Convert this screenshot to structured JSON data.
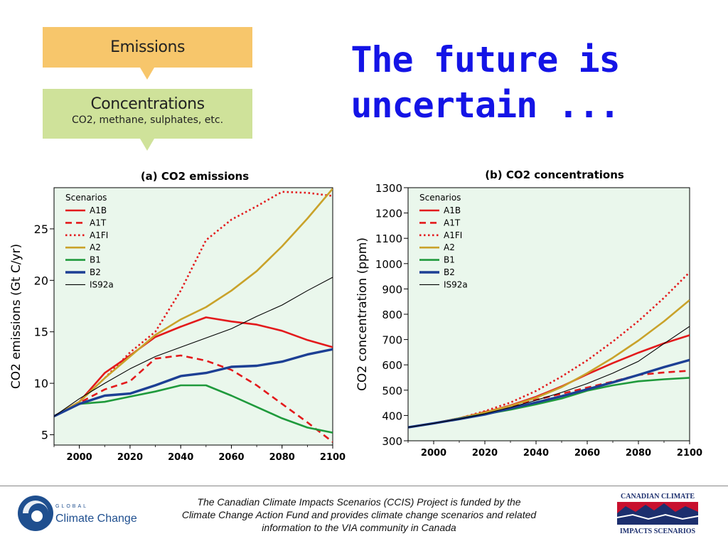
{
  "flow": {
    "emissions_label": "Emissions",
    "concentrations_label": "Concentrations",
    "concentrations_sub": "CO2, methane, sulphates, etc."
  },
  "headline": {
    "line1": "The future is",
    "line2": "uncertain ..."
  },
  "colors": {
    "A1B": "#e31a1c",
    "A1T": "#e31a1c",
    "A1FI": "#e31a1c",
    "A2": "#c9a22a",
    "B1": "#1f9a3c",
    "B2": "#1c3f94",
    "IS92a": "#000000",
    "plot_bg": "#eaf7ec",
    "headline": "#1414e6"
  },
  "chart_data": [
    {
      "type": "line",
      "title": "(a) CO2 emissions",
      "ylabel": "CO2 emissions (Gt C/yr)",
      "xlabel": "",
      "xlim": [
        1990,
        2100
      ],
      "ylim": [
        4,
        29
      ],
      "xticks": [
        2000,
        2020,
        2040,
        2060,
        2080,
        2100
      ],
      "yticks": [
        5,
        10,
        15,
        20,
        25
      ],
      "legend_title": "Scenarios",
      "legend_position": "top-left",
      "series": [
        {
          "name": "A1B",
          "style": "solid",
          "x": [
            1990,
            2000,
            2010,
            2020,
            2030,
            2040,
            2050,
            2060,
            2070,
            2080,
            2090,
            2100
          ],
          "y": [
            6.8,
            8.2,
            11.0,
            12.7,
            14.5,
            15.5,
            16.4,
            16.0,
            15.7,
            15.1,
            14.2,
            13.5
          ]
        },
        {
          "name": "A1T",
          "style": "dashed",
          "x": [
            1990,
            2000,
            2010,
            2020,
            2030,
            2040,
            2050,
            2060,
            2070,
            2080,
            2090,
            2100
          ],
          "y": [
            6.8,
            8.1,
            9.4,
            10.2,
            12.4,
            12.7,
            12.2,
            11.3,
            9.8,
            8.0,
            6.2,
            4.3
          ]
        },
        {
          "name": "A1FI",
          "style": "dotted",
          "x": [
            1990,
            2000,
            2010,
            2020,
            2030,
            2040,
            2050,
            2060,
            2070,
            2080,
            2090,
            2100
          ],
          "y": [
            6.8,
            8.2,
            10.5,
            13.0,
            15.0,
            19.0,
            23.9,
            25.9,
            27.2,
            28.6,
            28.5,
            28.2
          ]
        },
        {
          "name": "A2",
          "style": "solid",
          "x": [
            1990,
            2000,
            2010,
            2020,
            2030,
            2040,
            2050,
            2060,
            2070,
            2080,
            2090,
            2100
          ],
          "y": [
            6.8,
            8.2,
            10.5,
            12.6,
            14.7,
            16.2,
            17.4,
            19.0,
            20.9,
            23.3,
            26.0,
            28.9
          ]
        },
        {
          "name": "B1",
          "style": "solid",
          "x": [
            1990,
            2000,
            2010,
            2020,
            2030,
            2040,
            2050,
            2060,
            2070,
            2080,
            2090,
            2100
          ],
          "y": [
            6.8,
            8.0,
            8.2,
            8.7,
            9.2,
            9.8,
            9.8,
            8.8,
            7.7,
            6.6,
            5.7,
            5.2
          ]
        },
        {
          "name": "B2",
          "style": "solid",
          "x": [
            1990,
            2000,
            2010,
            2020,
            2030,
            2040,
            2050,
            2060,
            2070,
            2080,
            2090,
            2100
          ],
          "y": [
            6.8,
            8.0,
            8.8,
            9.0,
            9.8,
            10.7,
            11.0,
            11.6,
            11.7,
            12.1,
            12.8,
            13.3
          ]
        },
        {
          "name": "IS92a",
          "style": "solid",
          "x": [
            1990,
            2000,
            2010,
            2020,
            2030,
            2040,
            2050,
            2060,
            2070,
            2080,
            2090,
            2100
          ],
          "y": [
            6.8,
            8.5,
            10.0,
            11.4,
            12.6,
            13.5,
            14.4,
            15.3,
            16.5,
            17.6,
            19.0,
            20.3
          ]
        }
      ]
    },
    {
      "type": "line",
      "title": "(b) CO2 concentrations",
      "ylabel": "CO2 concentration (ppm)",
      "xlabel": "",
      "xlim": [
        1990,
        2100
      ],
      "ylim": [
        300,
        1300
      ],
      "xticks": [
        2000,
        2020,
        2040,
        2060,
        2080,
        2100
      ],
      "yticks": [
        300,
        400,
        500,
        600,
        700,
        800,
        900,
        1000,
        1100,
        1200,
        1300
      ],
      "legend_title": "Scenarios",
      "legend_position": "top-left",
      "series": [
        {
          "name": "A1B",
          "style": "solid",
          "x": [
            1990,
            2000,
            2010,
            2020,
            2030,
            2040,
            2050,
            2060,
            2070,
            2080,
            2090,
            2100
          ],
          "y": [
            353,
            369,
            389,
            412,
            440,
            474,
            515,
            563,
            607,
            648,
            685,
            717
          ]
        },
        {
          "name": "A1T",
          "style": "dashed",
          "x": [
            1990,
            2000,
            2010,
            2020,
            2030,
            2040,
            2050,
            2060,
            2070,
            2080,
            2090,
            2100
          ],
          "y": [
            353,
            369,
            389,
            414,
            437,
            462,
            486,
            510,
            534,
            560,
            570,
            577
          ]
        },
        {
          "name": "A1FI",
          "style": "dotted",
          "x": [
            1990,
            2000,
            2010,
            2020,
            2030,
            2040,
            2050,
            2060,
            2070,
            2080,
            2090,
            2100
          ],
          "y": [
            353,
            369,
            389,
            417,
            451,
            497,
            554,
            618,
            692,
            773,
            865,
            966
          ]
        },
        {
          "name": "A2",
          "style": "solid",
          "x": [
            1990,
            2000,
            2010,
            2020,
            2030,
            2040,
            2050,
            2060,
            2070,
            2080,
            2090,
            2100
          ],
          "y": [
            353,
            369,
            389,
            412,
            438,
            470,
            512,
            567,
            628,
            696,
            772,
            856
          ]
        },
        {
          "name": "B1",
          "style": "solid",
          "x": [
            1990,
            2000,
            2010,
            2020,
            2030,
            2040,
            2050,
            2060,
            2070,
            2080,
            2090,
            2100
          ],
          "y": [
            353,
            369,
            388,
            405,
            423,
            444,
            467,
            498,
            519,
            535,
            543,
            549
          ]
        },
        {
          "name": "B2",
          "style": "solid",
          "x": [
            1990,
            2000,
            2010,
            2020,
            2030,
            2040,
            2050,
            2060,
            2070,
            2080,
            2090,
            2100
          ],
          "y": [
            353,
            369,
            386,
            404,
            428,
            451,
            476,
            503,
            531,
            560,
            591,
            619
          ]
        },
        {
          "name": "IS92a",
          "style": "solid",
          "x": [
            1990,
            2000,
            2010,
            2020,
            2030,
            2040,
            2050,
            2060,
            2070,
            2080,
            2090,
            2100
          ],
          "y": [
            353,
            369,
            386,
            407,
            432,
            460,
            491,
            526,
            567,
            614,
            684,
            752
          ]
        }
      ]
    }
  ],
  "footer": {
    "line1": "The Canadian Climate Impacts Scenarios (CCIS) Project is funded by the",
    "line2": "Climate Change Action Fund and provides climate change scenarios and related",
    "line3": "information to the VIA community in Canada"
  },
  "logos": {
    "left_line1": "GLOBAL",
    "left_line2": "Climate Change",
    "right_line1": "CANADIAN CLIMATE",
    "right_line2": "IMPACTS SCENARIOS"
  }
}
